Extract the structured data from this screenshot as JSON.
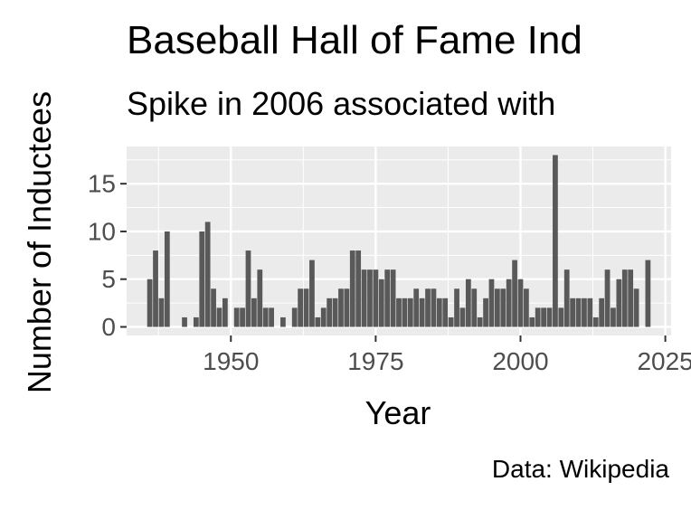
{
  "chart_data": {
    "type": "bar",
    "title": "Baseball Hall of Fame Ind",
    "subtitle": "Spike in 2006 associated with",
    "caption": "Data: Wikipedia",
    "xlabel": "Year",
    "ylabel": "Number of Inductees",
    "xlim": [
      1932,
      2026
    ],
    "ylim": [
      -0.9,
      18.9
    ],
    "x_ticks": [
      1950,
      1975,
      2000,
      2025
    ],
    "x_tick_labels": [
      "1950",
      "1975",
      "2000",
      "2025"
    ],
    "y_ticks": [
      0,
      5,
      10,
      15
    ],
    "y_tick_labels": [
      "0",
      "5",
      "10",
      "15"
    ],
    "grid": true,
    "bar_color": "#595959",
    "panel_color": "#ebebeb",
    "x": [
      1936,
      1937,
      1938,
      1939,
      1942,
      1944,
      1945,
      1946,
      1947,
      1948,
      1949,
      1951,
      1952,
      1953,
      1954,
      1955,
      1956,
      1957,
      1959,
      1961,
      1962,
      1963,
      1964,
      1965,
      1966,
      1967,
      1968,
      1969,
      1970,
      1971,
      1972,
      1973,
      1974,
      1975,
      1976,
      1977,
      1978,
      1979,
      1980,
      1981,
      1982,
      1983,
      1984,
      1985,
      1986,
      1987,
      1988,
      1989,
      1990,
      1991,
      1992,
      1993,
      1994,
      1995,
      1996,
      1997,
      1998,
      1999,
      2000,
      2001,
      2002,
      2003,
      2004,
      2005,
      2006,
      2007,
      2008,
      2009,
      2010,
      2011,
      2012,
      2013,
      2014,
      2015,
      2016,
      2017,
      2018,
      2019,
      2020,
      2022
    ],
    "values": [
      5,
      8,
      3,
      10,
      1,
      1,
      10,
      11,
      4,
      2,
      3,
      2,
      2,
      8,
      3,
      6,
      2,
      2,
      1,
      2,
      4,
      4,
      7,
      1,
      2,
      3,
      3,
      4,
      4,
      8,
      8,
      6,
      6,
      6,
      5,
      6,
      6,
      3,
      3,
      3,
      4,
      3,
      4,
      4,
      3,
      3,
      1,
      4,
      2,
      5,
      4,
      1,
      3,
      5,
      4,
      4,
      5,
      7,
      5,
      4,
      1,
      2,
      2,
      2,
      18,
      2,
      6,
      3,
      3,
      3,
      3,
      1,
      3,
      6,
      2,
      5,
      6,
      6,
      4,
      7
    ]
  }
}
